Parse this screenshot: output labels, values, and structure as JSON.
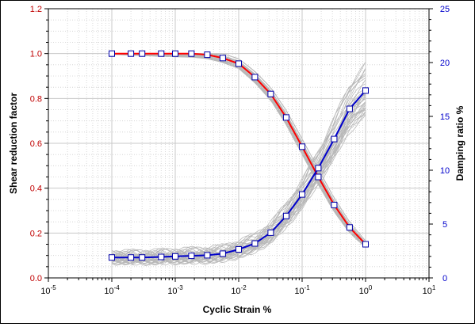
{
  "chart_data": {
    "type": "line",
    "xlabel": "Cyclic Strain %",
    "ylabel_left": "Shear reduction factor",
    "ylabel_right": "Damping ratio %",
    "x_scale": "log",
    "xlim": [
      1e-05,
      10
    ],
    "ylim_left": [
      0,
      1.2
    ],
    "ylim_right": [
      0,
      25
    ],
    "x_ticks": [
      {
        "value": 1e-05,
        "base": "10",
        "exp": "-5"
      },
      {
        "value": 0.0001,
        "base": "10",
        "exp": "-4"
      },
      {
        "value": 0.001,
        "base": "10",
        "exp": "-3"
      },
      {
        "value": 0.01,
        "base": "10",
        "exp": "-2"
      },
      {
        "value": 0.1,
        "base": "10",
        "exp": "-1"
      },
      {
        "value": 1,
        "base": "10",
        "exp": "0"
      },
      {
        "value": 10,
        "base": "10",
        "exp": "1"
      }
    ],
    "y_left_ticks": [
      "0.0",
      "0.2",
      "0.4",
      "0.6",
      "0.8",
      "1.0",
      "1.2"
    ],
    "y_right_ticks": [
      "0",
      "5",
      "10",
      "15",
      "20",
      "25"
    ],
    "grid": true,
    "colors": {
      "shear": "#ff0000",
      "damping": "#0000cc",
      "bands": "#b8b8b8",
      "left_axis": "#c00000",
      "right_axis": "#0000cc"
    },
    "series": [
      {
        "axis": "left",
        "x": [
          0.0001,
          0.0002,
          0.0003,
          0.0006,
          0.001,
          0.0018,
          0.0032,
          0.0056,
          0.01,
          0.018,
          0.032,
          0.056,
          0.1,
          0.18,
          0.32,
          0.56,
          1.0
        ],
        "values": [
          1.0,
          1.0,
          1.0,
          1.0,
          1.0,
          1.0,
          0.995,
          0.98,
          0.955,
          0.895,
          0.82,
          0.715,
          0.585,
          0.45,
          0.325,
          0.225,
          0.15
        ]
      },
      {
        "axis": "right",
        "x": [
          0.0001,
          0.0002,
          0.0003,
          0.0006,
          0.001,
          0.0018,
          0.0032,
          0.0056,
          0.01,
          0.018,
          0.032,
          0.056,
          0.1,
          0.18,
          0.32,
          0.56,
          1.0
        ],
        "values": [
          1.9,
          1.9,
          1.9,
          1.95,
          2.0,
          2.05,
          2.1,
          2.25,
          2.65,
          3.2,
          4.2,
          5.75,
          7.75,
          10.2,
          12.9,
          15.7,
          17.4
        ]
      }
    ]
  }
}
